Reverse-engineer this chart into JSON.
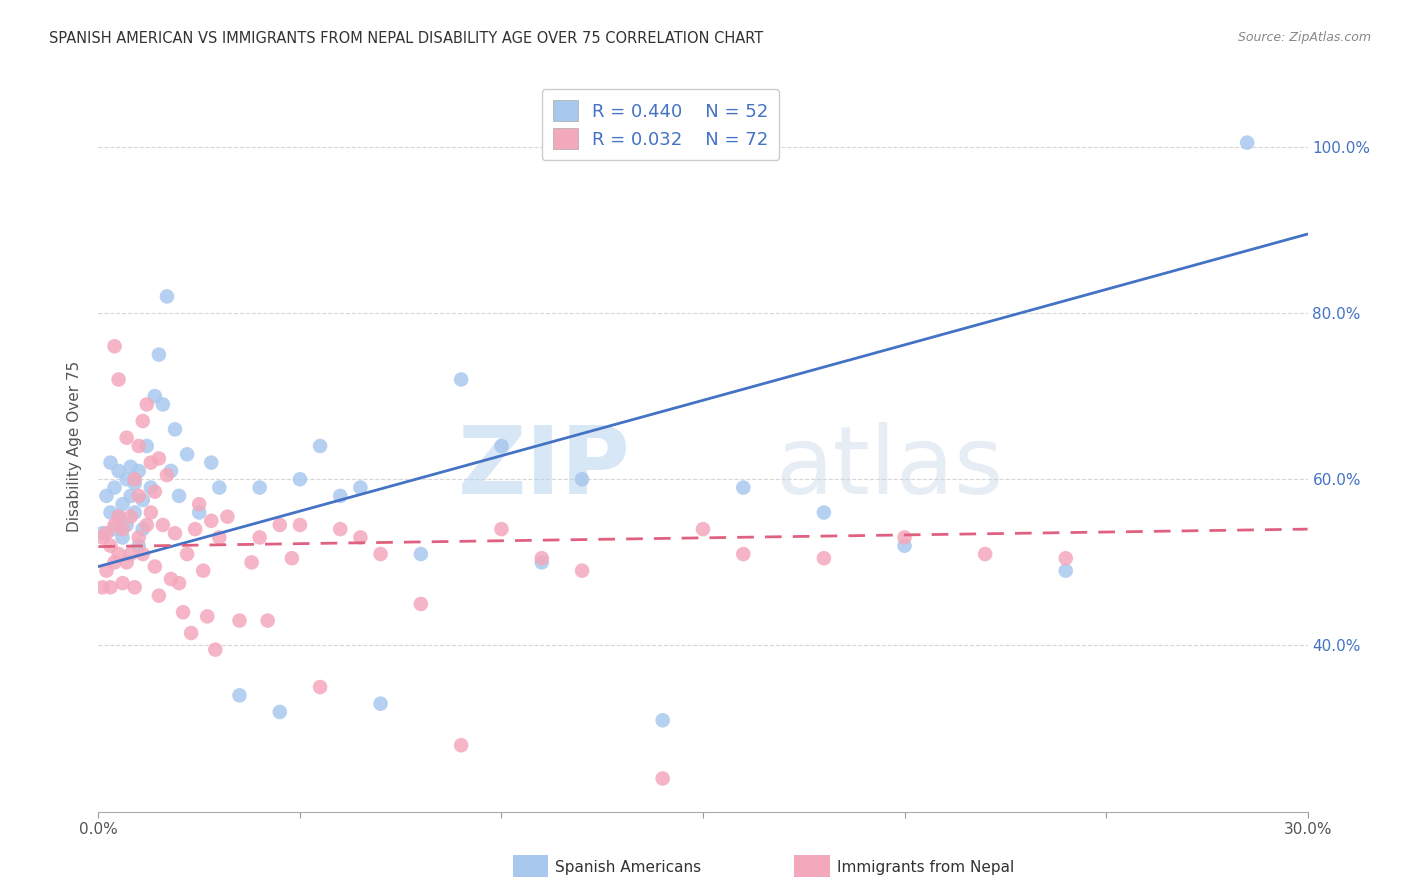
{
  "title": "SPANISH AMERICAN VS IMMIGRANTS FROM NEPAL DISABILITY AGE OVER 75 CORRELATION CHART",
  "source": "Source: ZipAtlas.com",
  "ylabel": "Disability Age Over 75",
  "watermark_zip": "ZIP",
  "watermark_atlas": "atlas",
  "x_min": 0.0,
  "x_max": 0.3,
  "y_min": 0.2,
  "y_max": 1.08,
  "y_ticks": [
    0.4,
    0.6,
    0.8,
    1.0
  ],
  "y_tick_labels": [
    "40.0%",
    "60.0%",
    "80.0%",
    "100.0%"
  ],
  "blue_R": 0.44,
  "blue_N": 52,
  "pink_R": 0.032,
  "pink_N": 72,
  "blue_color": "#A8C8EE",
  "pink_color": "#F4A8BC",
  "blue_line_color": "#4472C4",
  "pink_line_color": "#E06080",
  "grid_color": "#CCCCCC",
  "background_color": "#FFFFFF",
  "legend_label_blue": "Spanish Americans",
  "legend_label_pink": "Immigrants from Nepal",
  "blue_scatter_x": [
    0.001,
    0.002,
    0.003,
    0.003,
    0.004,
    0.004,
    0.005,
    0.005,
    0.006,
    0.006,
    0.007,
    0.007,
    0.008,
    0.008,
    0.009,
    0.009,
    0.01,
    0.01,
    0.011,
    0.011,
    0.012,
    0.013,
    0.014,
    0.015,
    0.016,
    0.017,
    0.018,
    0.019,
    0.02,
    0.022,
    0.025,
    0.028,
    0.03,
    0.035,
    0.04,
    0.045,
    0.05,
    0.055,
    0.06,
    0.065,
    0.07,
    0.08,
    0.09,
    0.1,
    0.11,
    0.12,
    0.14,
    0.16,
    0.18,
    0.2,
    0.24,
    0.285
  ],
  "blue_scatter_y": [
    0.535,
    0.58,
    0.56,
    0.62,
    0.54,
    0.59,
    0.61,
    0.555,
    0.57,
    0.53,
    0.6,
    0.545,
    0.58,
    0.615,
    0.56,
    0.595,
    0.52,
    0.61,
    0.575,
    0.54,
    0.64,
    0.59,
    0.7,
    0.75,
    0.69,
    0.82,
    0.61,
    0.66,
    0.58,
    0.63,
    0.56,
    0.62,
    0.59,
    0.34,
    0.59,
    0.32,
    0.6,
    0.64,
    0.58,
    0.59,
    0.33,
    0.51,
    0.72,
    0.64,
    0.5,
    0.6,
    0.31,
    0.59,
    0.56,
    0.52,
    0.49,
    1.005
  ],
  "pink_scatter_x": [
    0.001,
    0.001,
    0.002,
    0.002,
    0.003,
    0.003,
    0.004,
    0.004,
    0.004,
    0.005,
    0.005,
    0.005,
    0.006,
    0.006,
    0.007,
    0.007,
    0.008,
    0.008,
    0.009,
    0.009,
    0.01,
    0.01,
    0.01,
    0.011,
    0.011,
    0.012,
    0.012,
    0.013,
    0.013,
    0.014,
    0.014,
    0.015,
    0.015,
    0.016,
    0.017,
    0.018,
    0.019,
    0.02,
    0.021,
    0.022,
    0.023,
    0.024,
    0.025,
    0.026,
    0.027,
    0.028,
    0.029,
    0.03,
    0.032,
    0.035,
    0.038,
    0.04,
    0.042,
    0.045,
    0.048,
    0.05,
    0.055,
    0.06,
    0.065,
    0.07,
    0.08,
    0.09,
    0.1,
    0.11,
    0.12,
    0.14,
    0.15,
    0.16,
    0.18,
    0.2,
    0.22,
    0.24
  ],
  "pink_scatter_y": [
    0.53,
    0.47,
    0.535,
    0.49,
    0.52,
    0.47,
    0.545,
    0.5,
    0.76,
    0.555,
    0.51,
    0.72,
    0.475,
    0.54,
    0.5,
    0.65,
    0.555,
    0.51,
    0.47,
    0.6,
    0.53,
    0.58,
    0.64,
    0.51,
    0.67,
    0.545,
    0.69,
    0.56,
    0.62,
    0.495,
    0.585,
    0.46,
    0.625,
    0.545,
    0.605,
    0.48,
    0.535,
    0.475,
    0.44,
    0.51,
    0.415,
    0.54,
    0.57,
    0.49,
    0.435,
    0.55,
    0.395,
    0.53,
    0.555,
    0.43,
    0.5,
    0.53,
    0.43,
    0.545,
    0.505,
    0.545,
    0.35,
    0.54,
    0.53,
    0.51,
    0.45,
    0.28,
    0.54,
    0.505,
    0.49,
    0.24,
    0.54,
    0.51,
    0.505,
    0.53,
    0.51,
    0.505
  ],
  "blue_line_x": [
    0.0,
    0.3
  ],
  "blue_line_y": [
    0.495,
    0.895
  ],
  "pink_line_x": [
    0.0,
    0.3
  ],
  "pink_line_y": [
    0.519,
    0.54
  ]
}
